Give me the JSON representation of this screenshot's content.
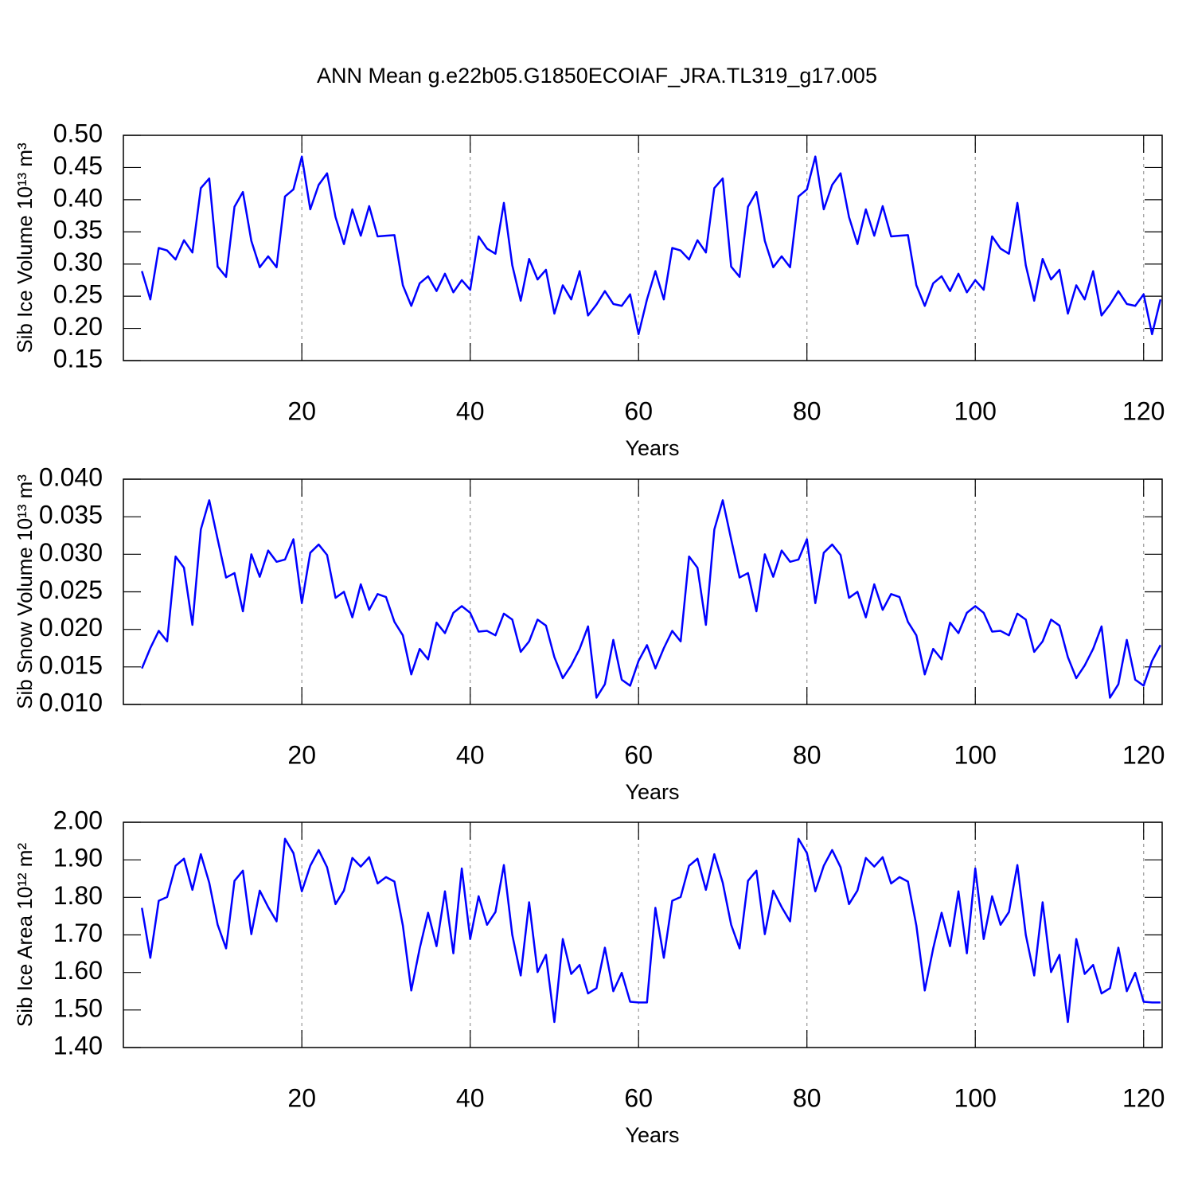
{
  "title": "ANN Mean g.e22b05.G1850ECOIAF_JRA.TL319_g17.005",
  "chart_data": [
    {
      "type": "line",
      "xlabel": "Years",
      "ylabel": "Sib Ice Volume 10¹³ m³",
      "x": [
        1,
        2,
        3,
        4,
        5,
        6,
        7,
        8,
        9,
        10,
        11,
        12,
        13,
        14,
        15,
        16,
        17,
        18,
        19,
        20,
        21,
        22,
        23,
        24,
        25,
        26,
        27,
        28,
        29,
        30,
        31,
        32,
        33,
        34,
        35,
        36,
        37,
        38,
        39,
        40,
        41,
        42,
        43,
        44,
        45,
        46,
        47,
        48,
        49,
        50,
        51,
        52,
        53,
        54,
        55,
        56,
        57,
        58,
        59,
        60,
        61,
        62,
        63,
        64,
        65,
        66,
        67,
        68,
        69,
        70,
        71,
        72,
        73,
        74,
        75,
        76,
        77,
        78,
        79,
        80,
        81,
        82,
        83,
        84,
        85,
        86,
        87,
        88,
        89,
        90,
        91,
        92,
        93,
        94,
        95,
        96,
        97,
        98,
        99,
        100,
        101,
        102,
        103,
        104,
        105,
        106,
        107,
        108,
        109,
        110,
        111,
        112,
        113,
        114,
        115,
        116,
        117,
        118,
        119,
        120,
        121,
        122
      ],
      "series": [
        {
          "color": "#0000ff",
          "values": [
            0.289,
            0.245,
            0.325,
            0.321,
            0.307,
            0.337,
            0.318,
            0.418,
            0.433,
            0.296,
            0.28,
            0.389,
            0.412,
            0.336,
            0.295,
            0.312,
            0.295,
            0.405,
            0.416,
            0.467,
            0.385,
            0.423,
            0.441,
            0.373,
            0.331,
            0.385,
            0.344,
            0.39,
            0.343,
            0.344,
            0.345,
            0.267,
            0.235,
            0.27,
            0.281,
            0.258,
            0.285,
            0.256,
            0.275,
            0.26,
            0.343,
            0.324,
            0.316,
            0.395,
            0.298,
            0.243,
            0.308,
            0.276,
            0.291,
            0.223,
            0.267,
            0.245,
            0.289,
            0.22,
            0.237,
            0.258,
            0.238,
            0.235,
            0.253,
            0.191,
            0.245,
            0.289,
            0.245,
            0.325,
            0.321,
            0.307,
            0.337,
            0.318,
            0.418,
            0.433,
            0.296,
            0.28,
            0.389,
            0.412,
            0.336,
            0.295,
            0.312,
            0.295,
            0.405,
            0.416,
            0.467,
            0.385,
            0.423,
            0.441,
            0.373,
            0.331,
            0.385,
            0.344,
            0.39,
            0.343,
            0.344,
            0.345,
            0.267,
            0.235,
            0.27,
            0.281,
            0.258,
            0.285,
            0.256,
            0.275,
            0.26,
            0.343,
            0.324,
            0.316,
            0.395,
            0.298,
            0.243,
            0.308,
            0.276,
            0.291,
            0.223,
            0.267,
            0.245,
            0.289,
            0.22,
            0.237,
            0.258,
            0.238,
            0.235,
            0.253,
            0.191,
            0.245
          ]
        }
      ],
      "xlim": [
        -1.2,
        122.2
      ],
      "xticks": [
        20,
        40,
        60,
        80,
        100,
        120
      ],
      "ylim": [
        0.15,
        0.5
      ],
      "yticks": [
        0.15,
        {
          "value": 0.2,
          "label": "0.20"
        },
        0.25,
        {
          "value": 0.3,
          "label": "0.30"
        },
        0.35,
        {
          "value": 0.4,
          "label": "0.40"
        },
        0.45,
        {
          "value": 0.5,
          "label": "0.50"
        }
      ],
      "grid": true
    },
    {
      "type": "line",
      "xlabel": "Years",
      "ylabel": "Sib Snow Volume 10¹³ m³",
      "x": [
        1,
        2,
        3,
        4,
        5,
        6,
        7,
        8,
        9,
        10,
        11,
        12,
        13,
        14,
        15,
        16,
        17,
        18,
        19,
        20,
        21,
        22,
        23,
        24,
        25,
        26,
        27,
        28,
        29,
        30,
        31,
        32,
        33,
        34,
        35,
        36,
        37,
        38,
        39,
        40,
        41,
        42,
        43,
        44,
        45,
        46,
        47,
        48,
        49,
        50,
        51,
        52,
        53,
        54,
        55,
        56,
        57,
        58,
        59,
        60,
        61,
        62,
        63,
        64,
        65,
        66,
        67,
        68,
        69,
        70,
        71,
        72,
        73,
        74,
        75,
        76,
        77,
        78,
        79,
        80,
        81,
        82,
        83,
        84,
        85,
        86,
        87,
        88,
        89,
        90,
        91,
        92,
        93,
        94,
        95,
        96,
        97,
        98,
        99,
        100,
        101,
        102,
        103,
        104,
        105,
        106,
        107,
        108,
        109,
        110,
        111,
        112,
        113,
        114,
        115,
        116,
        117,
        118,
        119,
        120,
        121,
        122
      ],
      "series": [
        {
          "color": "#0000ff",
          "values": [
            0.0148,
            0.0175,
            0.0198,
            0.0184,
            0.0297,
            0.0282,
            0.0206,
            0.0333,
            0.0372,
            0.032,
            0.0269,
            0.0275,
            0.0224,
            0.03,
            0.027,
            0.0305,
            0.029,
            0.0293,
            0.032,
            0.0235,
            0.0302,
            0.0313,
            0.0299,
            0.0242,
            0.025,
            0.0216,
            0.026,
            0.0226,
            0.0247,
            0.0243,
            0.021,
            0.0192,
            0.014,
            0.0174,
            0.016,
            0.0209,
            0.0195,
            0.0222,
            0.0231,
            0.0222,
            0.0197,
            0.0198,
            0.0192,
            0.0221,
            0.0213,
            0.017,
            0.0184,
            0.0213,
            0.0205,
            0.0163,
            0.0135,
            0.0152,
            0.0174,
            0.0204,
            0.0109,
            0.0127,
            0.0186,
            0.0133,
            0.0125,
            0.0158,
            0.0179,
            0.0148,
            0.0175,
            0.0198,
            0.0184,
            0.0297,
            0.0282,
            0.0206,
            0.0333,
            0.0372,
            0.032,
            0.0269,
            0.0275,
            0.0224,
            0.03,
            0.027,
            0.0305,
            0.029,
            0.0293,
            0.032,
            0.0235,
            0.0302,
            0.0313,
            0.0299,
            0.0242,
            0.025,
            0.0216,
            0.026,
            0.0226,
            0.0247,
            0.0243,
            0.021,
            0.0192,
            0.014,
            0.0174,
            0.016,
            0.0209,
            0.0195,
            0.0222,
            0.0231,
            0.0222,
            0.0197,
            0.0198,
            0.0192,
            0.0221,
            0.0213,
            0.017,
            0.0184,
            0.0213,
            0.0205,
            0.0163,
            0.0135,
            0.0152,
            0.0174,
            0.0204,
            0.0109,
            0.0127,
            0.0186,
            0.0133,
            0.0125,
            0.0158,
            0.0179
          ]
        }
      ],
      "xlim": [
        -1.2,
        122.2
      ],
      "xticks": [
        20,
        40,
        60,
        80,
        100,
        120
      ],
      "ylim": [
        0.01,
        0.04
      ],
      "yticks": [
        {
          "value": 0.01,
          "label": "0.010"
        },
        0.015,
        {
          "value": 0.02,
          "label": "0.020"
        },
        0.025,
        {
          "value": 0.03,
          "label": "0.030"
        },
        0.035,
        {
          "value": 0.04,
          "label": "0.040"
        }
      ],
      "grid": true
    },
    {
      "type": "line",
      "xlabel": "Years",
      "ylabel": "Sib Ice Area 10¹² m²",
      "x": [
        1,
        2,
        3,
        4,
        5,
        6,
        7,
        8,
        9,
        10,
        11,
        12,
        13,
        14,
        15,
        16,
        17,
        18,
        19,
        20,
        21,
        22,
        23,
        24,
        25,
        26,
        27,
        28,
        29,
        30,
        31,
        32,
        33,
        34,
        35,
        36,
        37,
        38,
        39,
        40,
        41,
        42,
        43,
        44,
        45,
        46,
        47,
        48,
        49,
        50,
        51,
        52,
        53,
        54,
        55,
        56,
        57,
        58,
        59,
        60,
        61,
        62,
        63,
        64,
        65,
        66,
        67,
        68,
        69,
        70,
        71,
        72,
        73,
        74,
        75,
        76,
        77,
        78,
        79,
        80,
        81,
        82,
        83,
        84,
        85,
        86,
        87,
        88,
        89,
        90,
        91,
        92,
        93,
        94,
        95,
        96,
        97,
        98,
        99,
        100,
        101,
        102,
        103,
        104,
        105,
        106,
        107,
        108,
        109,
        110,
        111,
        112,
        113,
        114,
        115,
        116,
        117,
        118,
        119,
        120,
        121,
        122
      ],
      "series": [
        {
          "color": "#0000ff",
          "values": [
            1.772,
            1.639,
            1.791,
            1.801,
            1.884,
            1.903,
            1.82,
            1.915,
            1.839,
            1.727,
            1.664,
            1.844,
            1.871,
            1.702,
            1.818,
            1.774,
            1.736,
            1.956,
            1.918,
            1.816,
            1.884,
            1.926,
            1.88,
            1.782,
            1.818,
            1.905,
            1.882,
            1.907,
            1.837,
            1.854,
            1.842,
            1.725,
            1.552,
            1.664,
            1.759,
            1.67,
            1.816,
            1.651,
            1.877,
            1.689,
            1.803,
            1.727,
            1.761,
            1.886,
            1.7,
            1.592,
            1.787,
            1.601,
            1.647,
            1.468,
            1.689,
            1.596,
            1.62,
            1.544,
            1.558,
            1.666,
            1.55,
            1.599,
            1.522,
            1.52,
            1.52,
            1.772,
            1.639,
            1.791,
            1.801,
            1.884,
            1.903,
            1.82,
            1.915,
            1.839,
            1.727,
            1.664,
            1.844,
            1.871,
            1.702,
            1.818,
            1.774,
            1.736,
            1.956,
            1.918,
            1.816,
            1.884,
            1.926,
            1.88,
            1.782,
            1.818,
            1.905,
            1.882,
            1.907,
            1.837,
            1.854,
            1.842,
            1.725,
            1.552,
            1.664,
            1.759,
            1.67,
            1.816,
            1.651,
            1.877,
            1.689,
            1.803,
            1.727,
            1.761,
            1.886,
            1.7,
            1.592,
            1.787,
            1.601,
            1.647,
            1.468,
            1.689,
            1.596,
            1.62,
            1.544,
            1.558,
            1.666,
            1.55,
            1.599,
            1.522,
            1.52,
            1.52
          ]
        }
      ],
      "xlim": [
        -1.2,
        122.2
      ],
      "xticks": [
        20,
        40,
        60,
        80,
        100,
        120
      ],
      "ylim": [
        1.4,
        2.0
      ],
      "yticks": [
        {
          "value": 1.4,
          "label": "1.40"
        },
        {
          "value": 1.5,
          "label": "1.50"
        },
        {
          "value": 1.6,
          "label": "1.60"
        },
        {
          "value": 1.7,
          "label": "1.70"
        },
        {
          "value": 1.8,
          "label": "1.80"
        },
        {
          "value": 1.9,
          "label": "1.90"
        },
        {
          "value": 2.0,
          "label": "2.00"
        }
      ],
      "grid": true
    }
  ]
}
